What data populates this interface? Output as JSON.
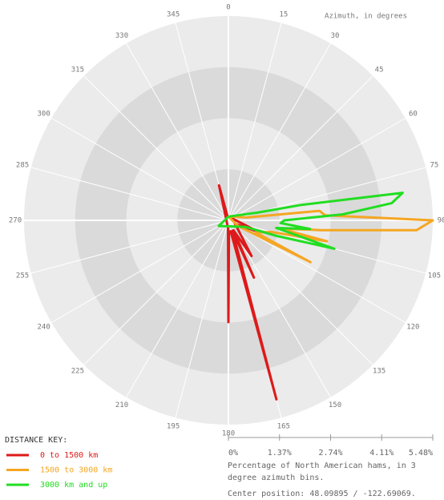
{
  "chart_data": {
    "type": "polar",
    "theta_label": "Azimuth, in degrees",
    "r_label": "Percentage of North American hams, in 3 degree azimuth bins.",
    "annotation": "Center position: 48.09895 / -122.69069.",
    "legend_title": "DISTANCE KEY:",
    "rlim": [
      0,
      5.48
    ],
    "rticks": [
      {
        "value": 0,
        "label": "0%"
      },
      {
        "value": 1.37,
        "label": "1.37%"
      },
      {
        "value": 2.74,
        "label": "2.74%"
      },
      {
        "value": 4.11,
        "label": "4.11%"
      },
      {
        "value": 5.48,
        "label": "5.48%"
      }
    ],
    "thetaticks": [
      0,
      15,
      30,
      45,
      60,
      75,
      90,
      105,
      120,
      135,
      150,
      165,
      180,
      195,
      210,
      225,
      240,
      255,
      270,
      285,
      300,
      315,
      330,
      345
    ],
    "series": [
      {
        "name": "0 to 1500 km",
        "color": "#dd1a1a",
        "x": [
          0,
          90,
          111,
          117,
          147,
          153,
          156,
          159,
          165,
          168,
          177,
          180,
          183,
          345,
          348
        ],
        "values": [
          0.1,
          0.2,
          0.88,
          0.2,
          1.14,
          0.3,
          1.68,
          0.3,
          4.97,
          0.3,
          0.3,
          2.73,
          0.2,
          0.97,
          0.1
        ]
      },
      {
        "name": "1500 to 3000 km",
        "color": "#f5a623",
        "x": [
          0,
          81,
          84,
          87,
          90,
          93,
          96,
          99,
          102,
          105,
          114,
          117,
          120
        ],
        "values": [
          0.1,
          0.5,
          2.45,
          2.6,
          5.48,
          5.05,
          2.5,
          1.4,
          2.7,
          1.2,
          0.8,
          2.47,
          0.3
        ]
      },
      {
        "name": "3000 km and up",
        "color": "#22dd22",
        "x": [
          0,
          75,
          78,
          81,
          84,
          87,
          90,
          93,
          96,
          99,
          105,
          108,
          111,
          240
        ],
        "values": [
          0.1,
          0.8,
          2.0,
          4.73,
          4.4,
          3.07,
          1.5,
          1.4,
          2.2,
          1.3,
          2.94,
          1.33,
          0.5,
          0.3
        ]
      }
    ]
  }
}
